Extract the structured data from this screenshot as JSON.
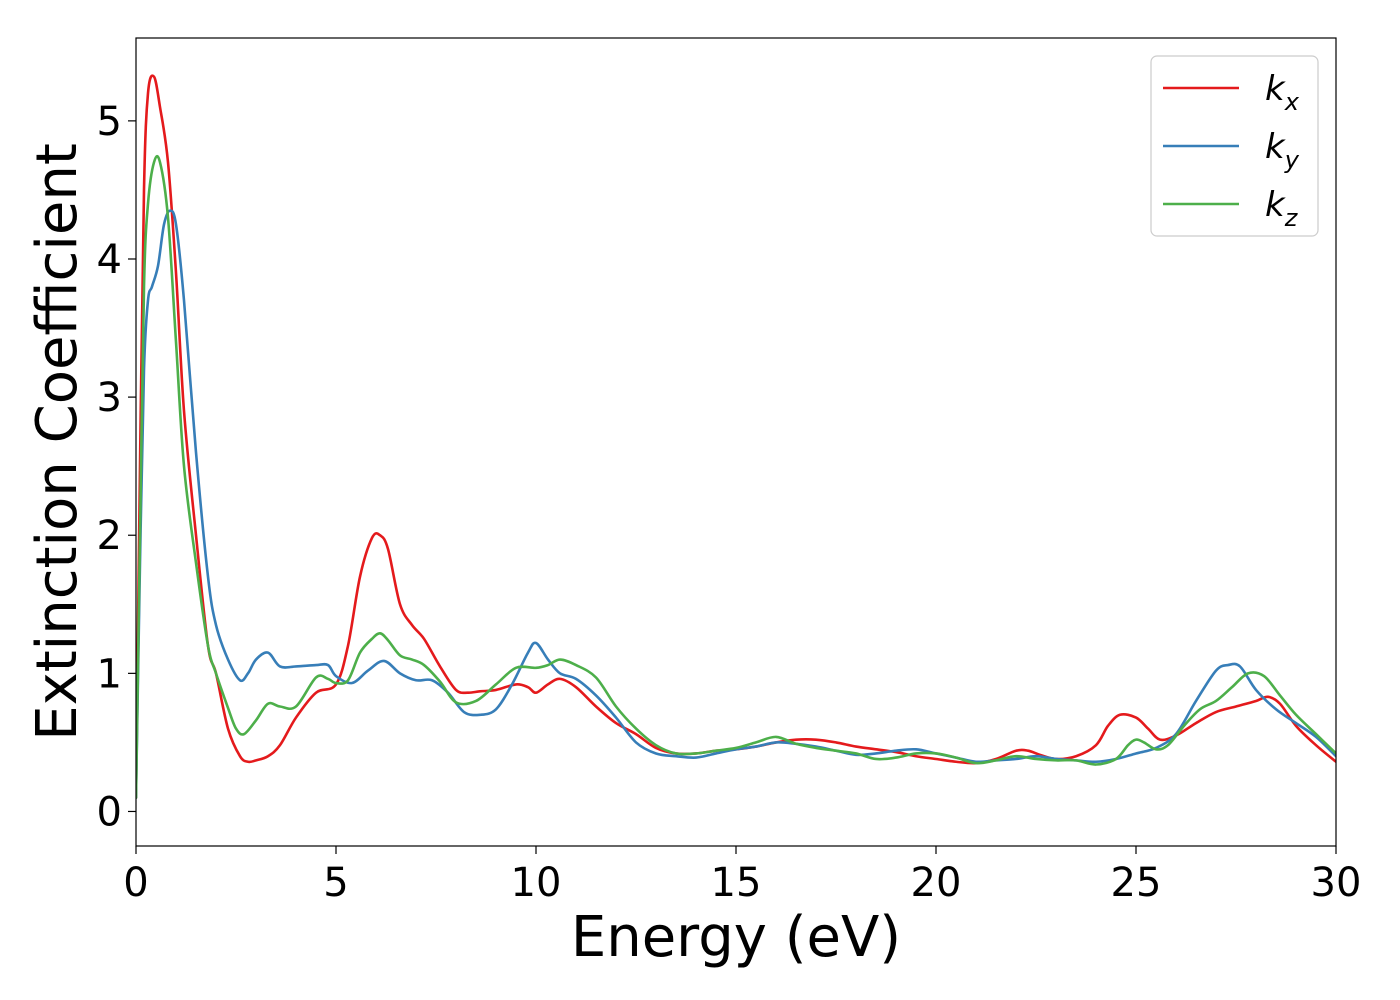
{
  "chart_data": {
    "type": "line",
    "title": "",
    "xlabel": "Energy (eV)",
    "ylabel": "Extinction Coefficient",
    "xlim": [
      0,
      30
    ],
    "ylim": [
      -0.25,
      5.6
    ],
    "xticks": [
      0,
      5,
      10,
      15,
      20,
      25,
      30
    ],
    "yticks": [
      0,
      1,
      2,
      3,
      4,
      5
    ],
    "grid": false,
    "legend_position": "top-right",
    "series": [
      {
        "name": "k",
        "subscript": "x",
        "color": "#e41a1c",
        "x": [
          0,
          0.1,
          0.2,
          0.3,
          0.45,
          0.6,
          0.8,
          1.0,
          1.2,
          1.5,
          1.8,
          2.0,
          2.3,
          2.6,
          2.8,
          3.0,
          3.3,
          3.6,
          4.0,
          4.5,
          5.0,
          5.3,
          5.6,
          5.9,
          6.1,
          6.3,
          6.6,
          6.9,
          7.2,
          7.6,
          8.0,
          8.3,
          8.6,
          9.0,
          9.5,
          9.8,
          10.0,
          10.3,
          10.6,
          11.0,
          11.5,
          12.0,
          12.5,
          13.0,
          13.5,
          14.0,
          14.5,
          15.0,
          15.5,
          16.0,
          16.5,
          17.0,
          17.5,
          18.0,
          18.5,
          19.0,
          19.5,
          20.0,
          20.5,
          21.0,
          21.5,
          22.0,
          22.3,
          22.6,
          23.0,
          23.5,
          24.0,
          24.3,
          24.6,
          25.0,
          25.3,
          25.6,
          26.0,
          26.5,
          27.0,
          27.5,
          28.0,
          28.3,
          28.6,
          29.0,
          29.5,
          30.0
        ],
        "y": [
          0.1,
          2.5,
          4.5,
          5.2,
          5.32,
          5.1,
          4.7,
          3.9,
          2.9,
          2.0,
          1.2,
          1.0,
          0.6,
          0.4,
          0.36,
          0.37,
          0.4,
          0.48,
          0.68,
          0.86,
          0.92,
          1.2,
          1.7,
          1.98,
          2.0,
          1.9,
          1.5,
          1.35,
          1.25,
          1.05,
          0.88,
          0.86,
          0.87,
          0.88,
          0.92,
          0.9,
          0.86,
          0.92,
          0.96,
          0.9,
          0.76,
          0.64,
          0.56,
          0.46,
          0.42,
          0.42,
          0.44,
          0.45,
          0.47,
          0.5,
          0.52,
          0.52,
          0.5,
          0.47,
          0.45,
          0.43,
          0.4,
          0.38,
          0.36,
          0.35,
          0.38,
          0.44,
          0.44,
          0.41,
          0.38,
          0.4,
          0.48,
          0.62,
          0.7,
          0.68,
          0.6,
          0.52,
          0.55,
          0.64,
          0.72,
          0.76,
          0.8,
          0.83,
          0.78,
          0.62,
          0.48,
          0.36
        ]
      },
      {
        "name": "k",
        "subscript": "y",
        "color": "#377eb8",
        "x": [
          0,
          0.1,
          0.2,
          0.3,
          0.4,
          0.55,
          0.7,
          0.85,
          1.0,
          1.2,
          1.5,
          1.8,
          2.0,
          2.3,
          2.6,
          2.8,
          3.0,
          3.3,
          3.6,
          4.0,
          4.5,
          4.8,
          5.0,
          5.4,
          5.8,
          6.2,
          6.6,
          7.0,
          7.4,
          7.8,
          8.2,
          8.6,
          9.0,
          9.4,
          9.8,
          10.0,
          10.3,
          10.6,
          11.0,
          11.5,
          12.0,
          12.5,
          13.0,
          13.5,
          14.0,
          14.5,
          15.0,
          15.5,
          16.0,
          16.5,
          17.0,
          17.5,
          18.0,
          18.5,
          19.0,
          19.5,
          20.0,
          20.5,
          21.0,
          21.5,
          22.0,
          22.5,
          23.0,
          23.5,
          24.0,
          24.5,
          25.0,
          25.5,
          26.0,
          26.5,
          27.0,
          27.3,
          27.6,
          28.0,
          28.5,
          29.0,
          29.5,
          30.0
        ],
        "y": [
          0.1,
          1.8,
          3.2,
          3.7,
          3.8,
          3.95,
          4.25,
          4.35,
          4.25,
          3.7,
          2.6,
          1.7,
          1.35,
          1.1,
          0.95,
          1.0,
          1.1,
          1.15,
          1.05,
          1.05,
          1.06,
          1.06,
          0.98,
          0.93,
          1.02,
          1.09,
          1.0,
          0.95,
          0.95,
          0.86,
          0.72,
          0.7,
          0.74,
          0.92,
          1.15,
          1.22,
          1.1,
          1.0,
          0.96,
          0.84,
          0.68,
          0.5,
          0.42,
          0.4,
          0.39,
          0.42,
          0.45,
          0.47,
          0.5,
          0.49,
          0.47,
          0.44,
          0.41,
          0.42,
          0.44,
          0.45,
          0.42,
          0.39,
          0.36,
          0.37,
          0.38,
          0.4,
          0.38,
          0.37,
          0.36,
          0.38,
          0.42,
          0.46,
          0.56,
          0.8,
          1.02,
          1.06,
          1.05,
          0.88,
          0.74,
          0.64,
          0.54,
          0.4
        ]
      },
      {
        "name": "k",
        "subscript": "z",
        "color": "#4daf4a",
        "x": [
          0,
          0.1,
          0.2,
          0.3,
          0.45,
          0.6,
          0.8,
          1.0,
          1.2,
          1.5,
          1.8,
          2.0,
          2.3,
          2.5,
          2.7,
          3.0,
          3.3,
          3.6,
          4.0,
          4.5,
          4.8,
          5.0,
          5.3,
          5.6,
          5.9,
          6.1,
          6.3,
          6.6,
          6.9,
          7.2,
          7.6,
          8.0,
          8.5,
          9.0,
          9.5,
          10.0,
          10.3,
          10.6,
          11.0,
          11.5,
          12.0,
          12.5,
          13.0,
          13.5,
          14.0,
          14.5,
          15.0,
          15.5,
          16.0,
          16.5,
          17.0,
          17.5,
          18.0,
          18.5,
          19.0,
          19.5,
          20.0,
          20.5,
          21.0,
          21.5,
          22.0,
          22.5,
          23.0,
          23.5,
          24.0,
          24.5,
          24.8,
          25.0,
          25.2,
          25.5,
          25.8,
          26.2,
          26.6,
          27.0,
          27.4,
          27.8,
          28.2,
          28.6,
          29.0,
          29.5,
          30.0
        ],
        "y": [
          0.1,
          2.0,
          3.8,
          4.4,
          4.7,
          4.7,
          4.3,
          3.4,
          2.5,
          1.8,
          1.2,
          1.0,
          0.75,
          0.6,
          0.56,
          0.66,
          0.78,
          0.76,
          0.76,
          0.97,
          0.96,
          0.93,
          0.95,
          1.15,
          1.25,
          1.29,
          1.24,
          1.13,
          1.1,
          1.06,
          0.94,
          0.79,
          0.8,
          0.92,
          1.04,
          1.04,
          1.06,
          1.1,
          1.06,
          0.97,
          0.76,
          0.6,
          0.48,
          0.42,
          0.42,
          0.44,
          0.46,
          0.5,
          0.54,
          0.49,
          0.46,
          0.44,
          0.42,
          0.38,
          0.39,
          0.42,
          0.42,
          0.39,
          0.35,
          0.37,
          0.4,
          0.38,
          0.37,
          0.37,
          0.34,
          0.38,
          0.48,
          0.52,
          0.5,
          0.45,
          0.48,
          0.62,
          0.74,
          0.8,
          0.9,
          1.0,
          0.98,
          0.84,
          0.7,
          0.56,
          0.42
        ]
      }
    ]
  }
}
